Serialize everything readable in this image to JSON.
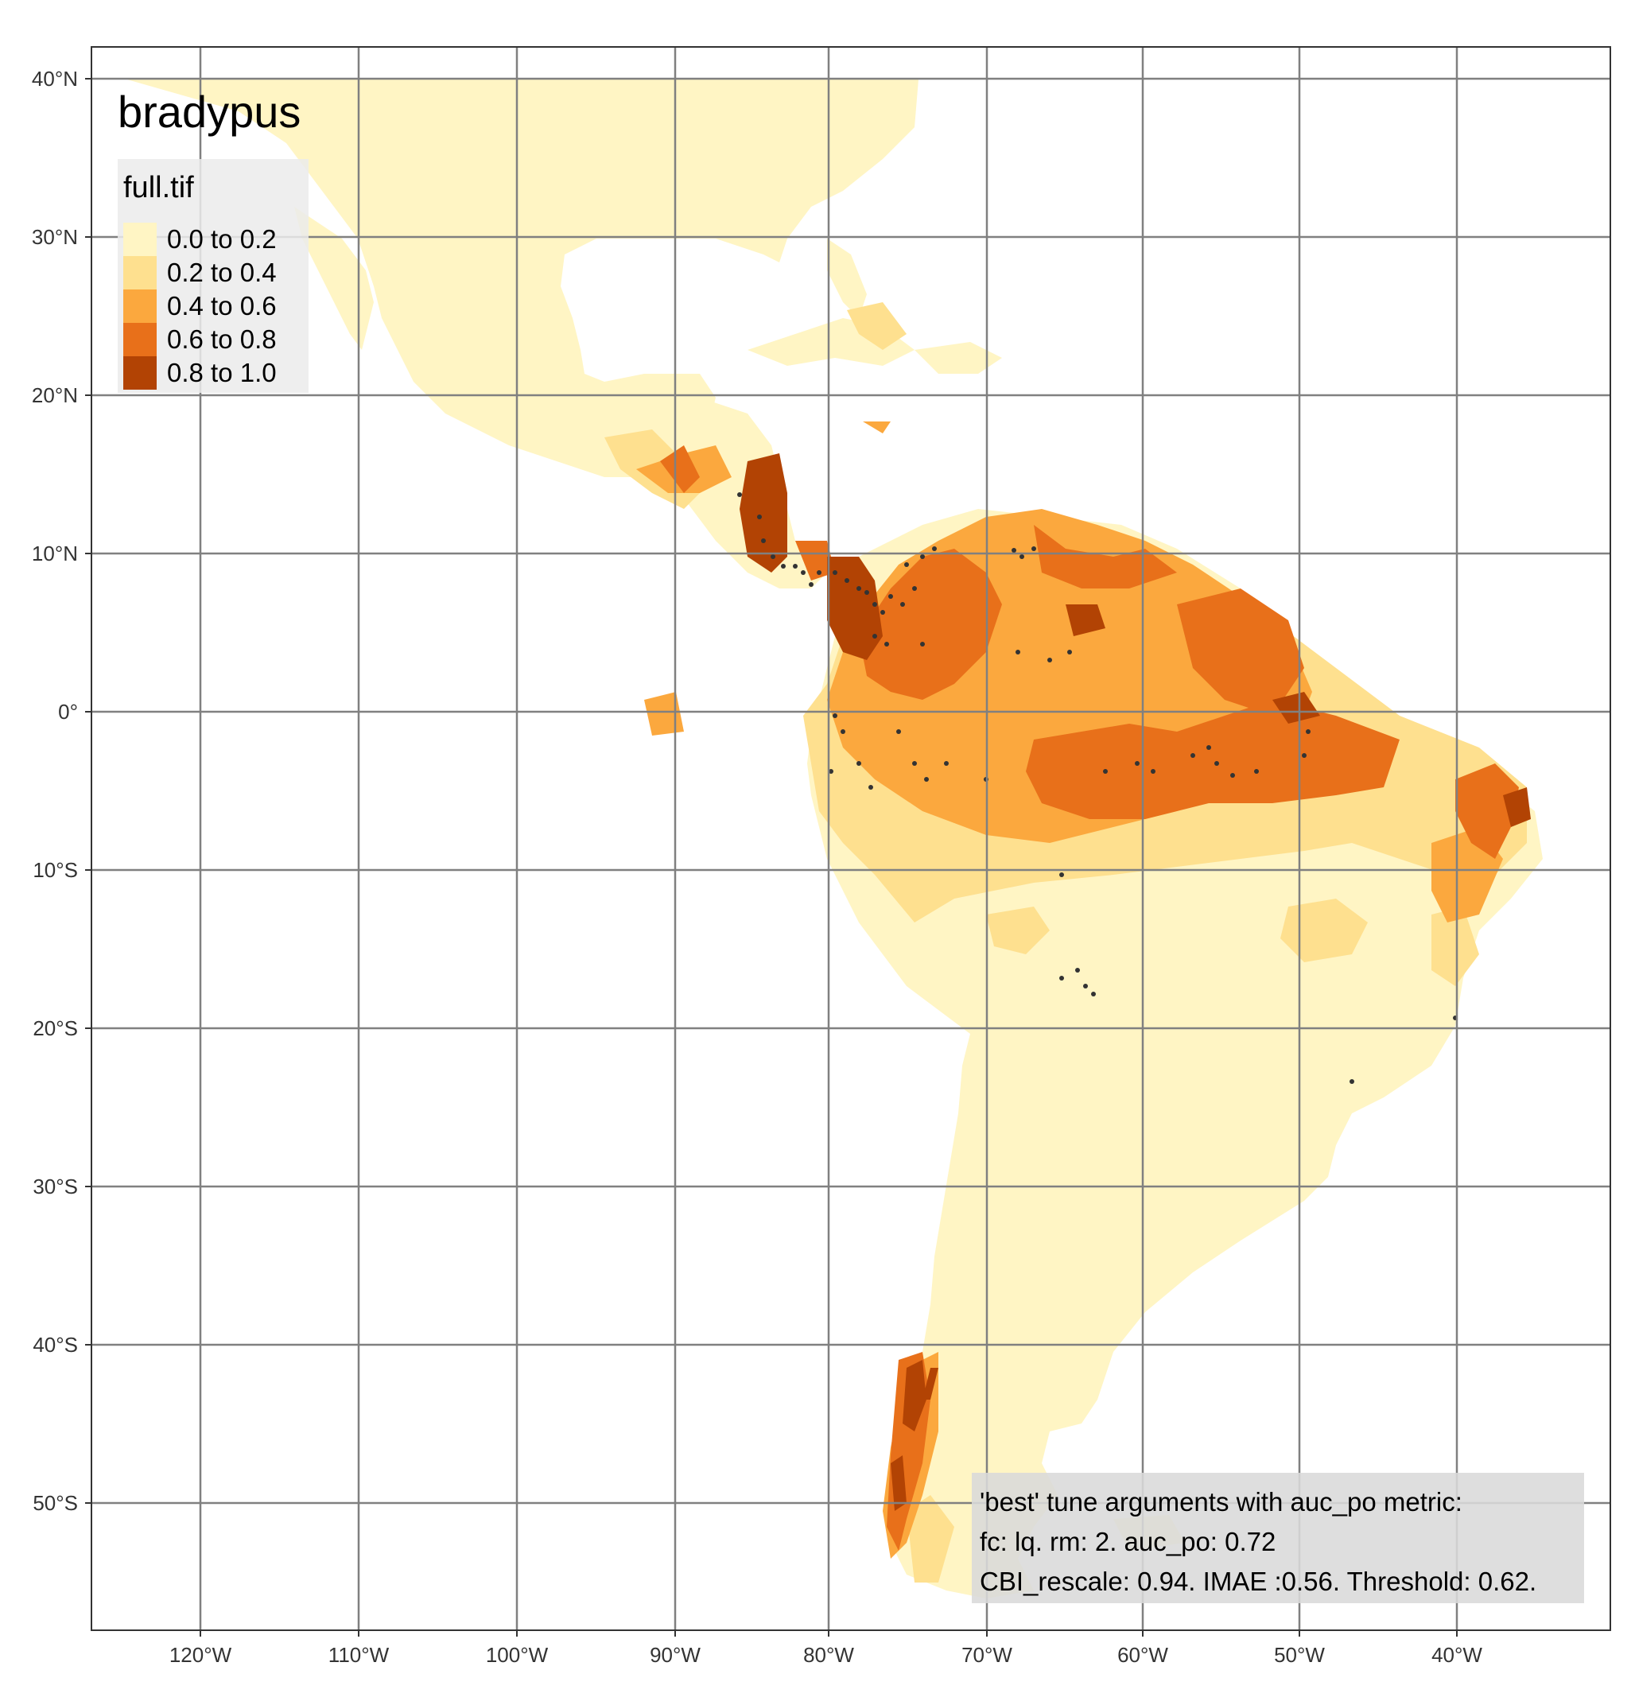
{
  "title": "bradypus",
  "legend": {
    "title": "full.tif",
    "items": [
      {
        "label": "0.0 to 0.2",
        "color": "#FFF5C4"
      },
      {
        "label": "0.2 to 0.4",
        "color": "#FEE08F"
      },
      {
        "label": "0.4 to 0.6",
        "color": "#FBA83E"
      },
      {
        "label": "0.6 to 0.8",
        "color": "#E8701A"
      },
      {
        "label": "0.8 to 1.0",
        "color": "#B24304"
      }
    ]
  },
  "axes": {
    "x_labels": [
      "120°W",
      "110°W",
      "100°W",
      "90°W",
      "80°W",
      "70°W",
      "60°W",
      "50°W",
      "40°W"
    ],
    "y_labels": [
      "40°N",
      "30°N",
      "20°N",
      "10°N",
      "0°",
      "10°S",
      "20°S",
      "30°S",
      "40°S",
      "50°S"
    ]
  },
  "annotation": {
    "lines": [
      "'best' tune arguments with auc_po metric:",
      "fc: lq. rm: 2. auc_po: 0.72",
      "CBI_rescale: 0.94. IMAE :0.56. Threshold: 0.62."
    ]
  },
  "colors": {
    "grid": "#808080",
    "frame": "#333333",
    "points": "#333333",
    "legend_bg": "#EBEBEB",
    "note_bg": "#D9D9D9"
  }
}
